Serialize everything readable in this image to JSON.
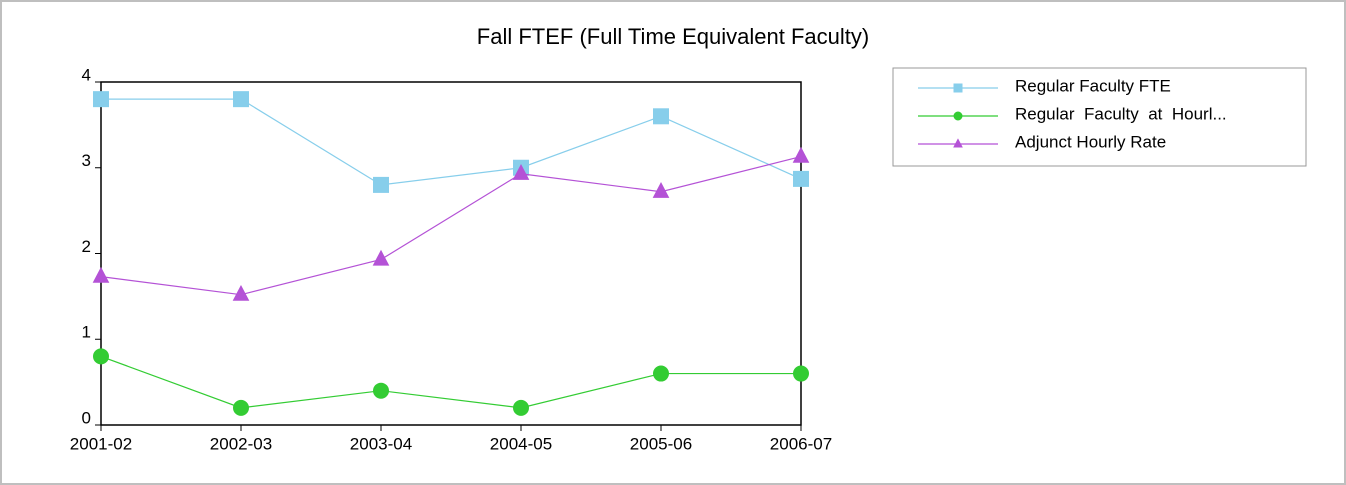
{
  "chart_data": {
    "type": "line",
    "title": "Fall FTEF (Full Time Equivalent Faculty)",
    "categories": [
      "2001-02",
      "2002-03",
      "2003-04",
      "2004-05",
      "2005-06",
      "2006-07"
    ],
    "series": [
      {
        "name": "Regular Faculty FTE",
        "color": "#87ceeb",
        "marker": "square",
        "values": [
          3.8,
          3.8,
          2.8,
          3.0,
          3.6,
          2.87
        ]
      },
      {
        "name": "Regular  Faculty  at  Hourl...",
        "color": "#33cc33",
        "marker": "circle",
        "values": [
          0.8,
          0.2,
          0.4,
          0.2,
          0.6,
          0.6
        ]
      },
      {
        "name": "Adjunct Hourly Rate",
        "color": "#b452d6",
        "marker": "triangle",
        "values": [
          1.73,
          1.52,
          1.93,
          2.93,
          2.72,
          3.13
        ]
      }
    ],
    "ylim": [
      0,
      4
    ],
    "yticks": [
      0,
      1,
      2,
      3,
      4
    ],
    "grid": false,
    "legend": "top-right"
  }
}
